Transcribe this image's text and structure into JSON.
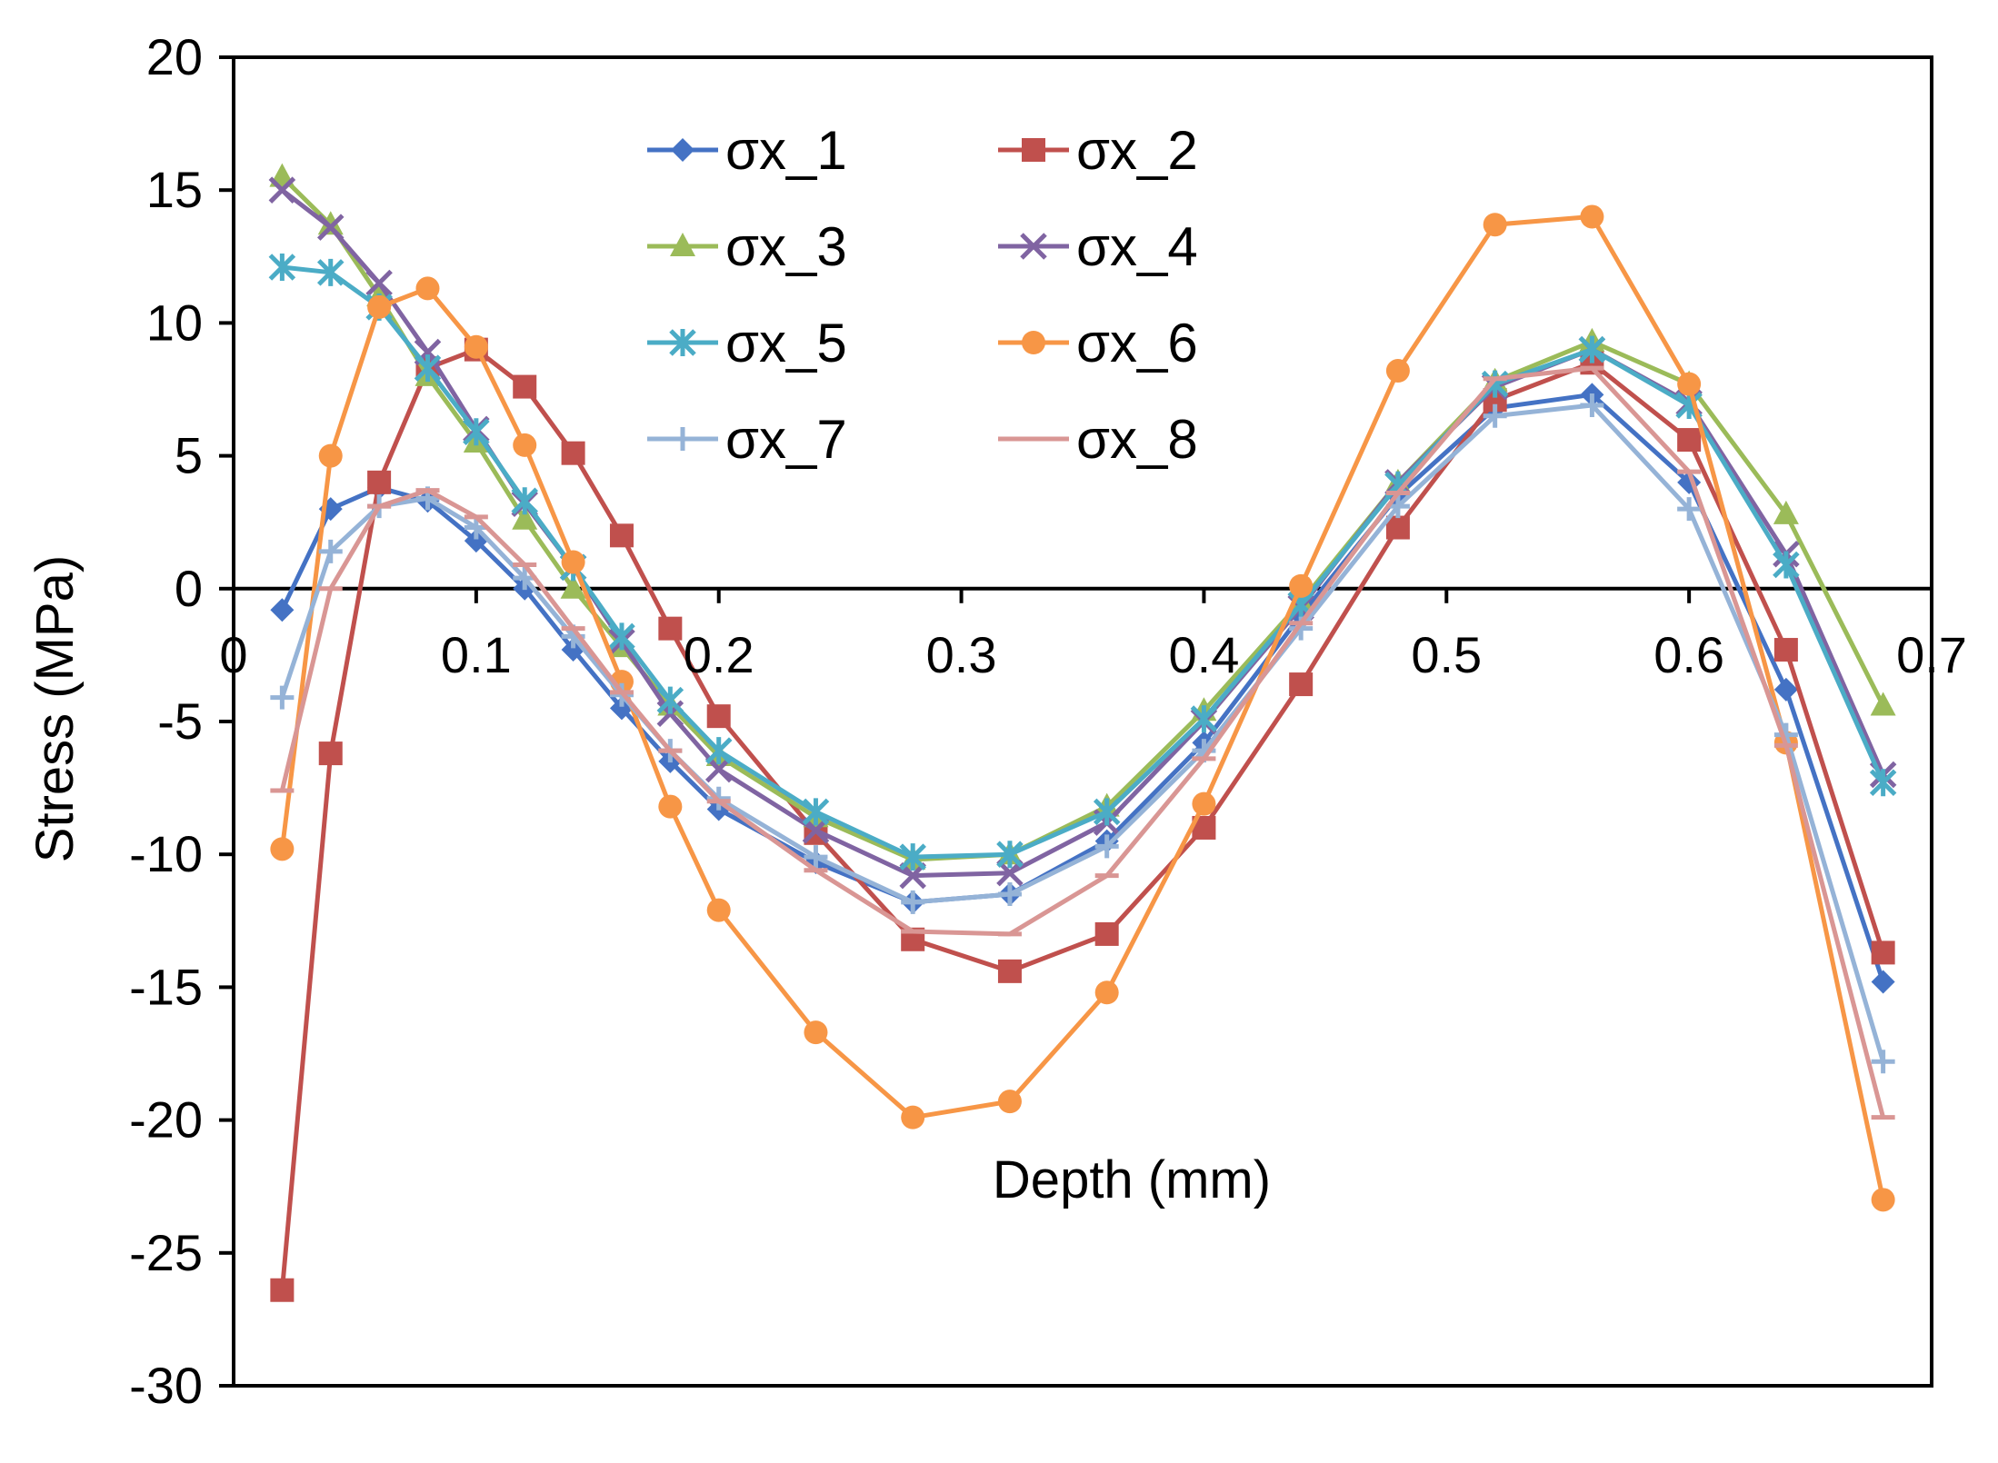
{
  "chart_data": {
    "type": "line",
    "title": "",
    "xlabel": "Depth (mm)",
    "ylabel": "Stress (MPa)",
    "xlim": [
      0,
      0.7
    ],
    "ylim": [
      -30,
      20
    ],
    "x_ticks": [
      "0",
      "0.1",
      "0.2",
      "0.3",
      "0.4",
      "0.5",
      "0.6",
      "0.7"
    ],
    "y_ticks": [
      "20",
      "15",
      "10",
      "5",
      "0",
      "-5",
      "-10",
      "-15",
      "-20",
      "-25",
      "-30"
    ],
    "grid": false,
    "legend": {
      "placement": "top-left",
      "columns": 2
    },
    "x": [
      0.02,
      0.04,
      0.06,
      0.08,
      0.1,
      0.12,
      0.14,
      0.16,
      0.18,
      0.2,
      0.24,
      0.28,
      0.32,
      0.36,
      0.4,
      0.44,
      0.48,
      0.52,
      0.56,
      0.6,
      0.64,
      0.68
    ],
    "series": [
      {
        "name": "σx_1",
        "color": "#4472C4",
        "marker": "diamond",
        "values": [
          -0.8,
          3.0,
          3.8,
          3.3,
          1.8,
          0.0,
          -2.3,
          -4.5,
          -6.5,
          -8.3,
          -10.3,
          -11.8,
          -11.5,
          -9.5,
          -5.8,
          -1.0,
          3.5,
          6.8,
          7.3,
          4.0,
          -3.8,
          -14.8
        ]
      },
      {
        "name": "σx_2",
        "color": "#C0504D",
        "marker": "square",
        "values": [
          -26.4,
          -6.2,
          4.0,
          8.3,
          9.0,
          7.6,
          5.1,
          2.0,
          -1.5,
          -4.8,
          -9.2,
          -13.2,
          -14.4,
          -13.0,
          -9.0,
          -3.6,
          2.3,
          7.1,
          8.5,
          5.6,
          -2.3,
          -13.7
        ]
      },
      {
        "name": "σx_3",
        "color": "#9BBB59",
        "marker": "triangle",
        "values": [
          15.5,
          13.7,
          11.0,
          8.0,
          5.5,
          2.6,
          0.0,
          -2.2,
          -4.4,
          -6.3,
          -8.6,
          -10.2,
          -10.0,
          -8.2,
          -4.6,
          -0.5,
          4.0,
          7.8,
          9.3,
          7.7,
          2.8,
          -4.4
        ]
      },
      {
        "name": "σx_4",
        "color": "#8064A2",
        "marker": "x",
        "values": [
          15.0,
          13.6,
          11.5,
          8.9,
          6.0,
          3.2,
          0.8,
          -2.0,
          -4.7,
          -6.8,
          -9.1,
          -10.8,
          -10.7,
          -8.8,
          -5.0,
          -0.7,
          4.0,
          7.6,
          9.0,
          7.0,
          1.3,
          -7.0
        ]
      },
      {
        "name": "σx_5",
        "color": "#4BACC6",
        "marker": "star",
        "values": [
          12.1,
          11.9,
          10.6,
          8.3,
          5.9,
          3.3,
          0.8,
          -1.8,
          -4.2,
          -6.1,
          -8.4,
          -10.1,
          -10.0,
          -8.4,
          -4.9,
          -0.6,
          3.9,
          7.7,
          9.0,
          6.9,
          0.9,
          -7.3
        ]
      },
      {
        "name": "σx_6",
        "color": "#F79646",
        "marker": "circle",
        "values": [
          -9.8,
          5.0,
          10.6,
          11.3,
          9.1,
          5.4,
          1.0,
          -3.5,
          -8.2,
          -12.1,
          -16.7,
          -19.9,
          -19.3,
          -15.2,
          -8.1,
          0.1,
          8.2,
          13.7,
          14.0,
          7.7,
          -5.8,
          -23.0
        ]
      },
      {
        "name": "σx_7",
        "color": "#95B3D7",
        "marker": "plus",
        "values": [
          -4.1,
          1.4,
          3.1,
          3.4,
          2.3,
          0.4,
          -1.8,
          -4.0,
          -6.1,
          -7.9,
          -10.1,
          -11.8,
          -11.5,
          -9.7,
          -6.1,
          -1.5,
          3.1,
          6.5,
          6.9,
          3.0,
          -5.5,
          -17.8
        ]
      },
      {
        "name": "σx_8",
        "color": "#D99694",
        "marker": "dash",
        "values": [
          -7.6,
          0.0,
          3.1,
          3.7,
          2.7,
          0.9,
          -1.5,
          -3.9,
          -6.1,
          -8.0,
          -10.6,
          -12.9,
          -13.0,
          -10.8,
          -6.4,
          -1.3,
          3.6,
          7.9,
          8.3,
          4.4,
          -5.9,
          -19.9
        ]
      }
    ]
  }
}
